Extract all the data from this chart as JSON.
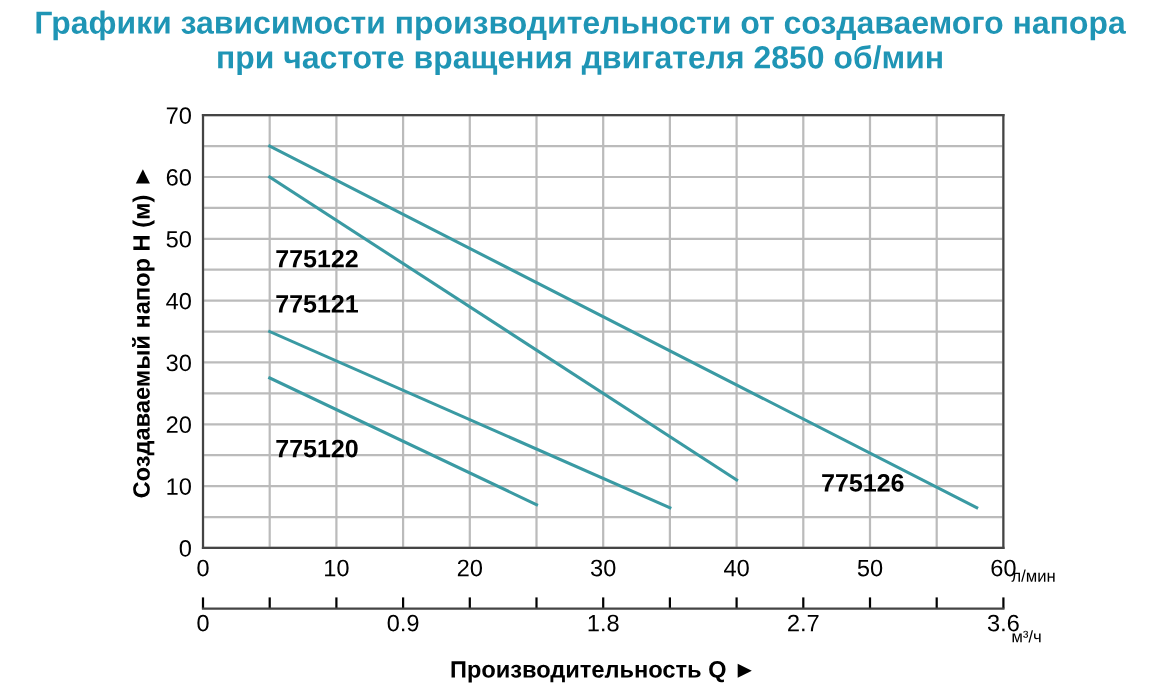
{
  "chart_data": {
    "type": "line",
    "title": "Графики зависимости производительности от создаваемого напора\nпри частоте вращения двигателя 2850 об/мин",
    "xlabel": "л/мин",
    "x2label": "м³/ч",
    "ylabel": "Создаваемый напор H (м) ►",
    "annotations": [
      "Производительность Q ►"
    ],
    "series": [
      {
        "name": "775126",
        "color": "#3a9aa3",
        "x": [
          5,
          58
        ],
        "values": [
          65,
          6.5
        ]
      },
      {
        "name": "775122",
        "color": "#3a9aa3",
        "x": [
          5,
          40
        ],
        "values": [
          60,
          11
        ]
      },
      {
        "name": "775121",
        "color": "#3a9aa3",
        "x": [
          5,
          35
        ],
        "values": [
          35,
          6.5
        ]
      },
      {
        "name": "775120",
        "color": "#3a9aa3",
        "x": [
          5,
          25
        ],
        "values": [
          27.5,
          7
        ]
      }
    ],
    "xlim": [
      0,
      60
    ],
    "ylim": [
      0,
      70
    ],
    "xticks": [
      0,
      {
        "value": 5,
        "label": null
      },
      10,
      {
        "value": 15,
        "label": null
      },
      20,
      {
        "value": 25,
        "label": null
      },
      30,
      {
        "value": 35,
        "label": null
      },
      40,
      {
        "value": 45,
        "label": null
      },
      50,
      {
        "value": 55,
        "label": null
      },
      60
    ],
    "yticks": [
      0,
      {
        "value": 5,
        "label": null
      },
      10,
      {
        "value": 15,
        "label": null
      },
      20,
      {
        "value": 25,
        "label": null
      },
      30,
      {
        "value": 35,
        "label": null
      },
      40,
      {
        "value": 45,
        "label": null
      },
      50,
      {
        "value": 55,
        "label": null
      },
      60,
      {
        "value": 65,
        "label": null
      },
      70
    ],
    "x2lim": [
      0,
      3.6
    ],
    "x2ticks": [
      0,
      {
        "value": 0.3,
        "label": null
      },
      {
        "value": 0.6,
        "label": null
      },
      0.9,
      {
        "value": 1.2,
        "label": null
      },
      {
        "value": 1.5,
        "label": null
      },
      1.8,
      {
        "value": 2.1,
        "label": null
      },
      {
        "value": 2.4,
        "label": null
      },
      2.7,
      {
        "value": 3.0,
        "label": null
      },
      {
        "value": 3.3,
        "label": null
      },
      3.6
    ],
    "grid": true,
    "marker": "none",
    "line_style": "solid"
  }
}
